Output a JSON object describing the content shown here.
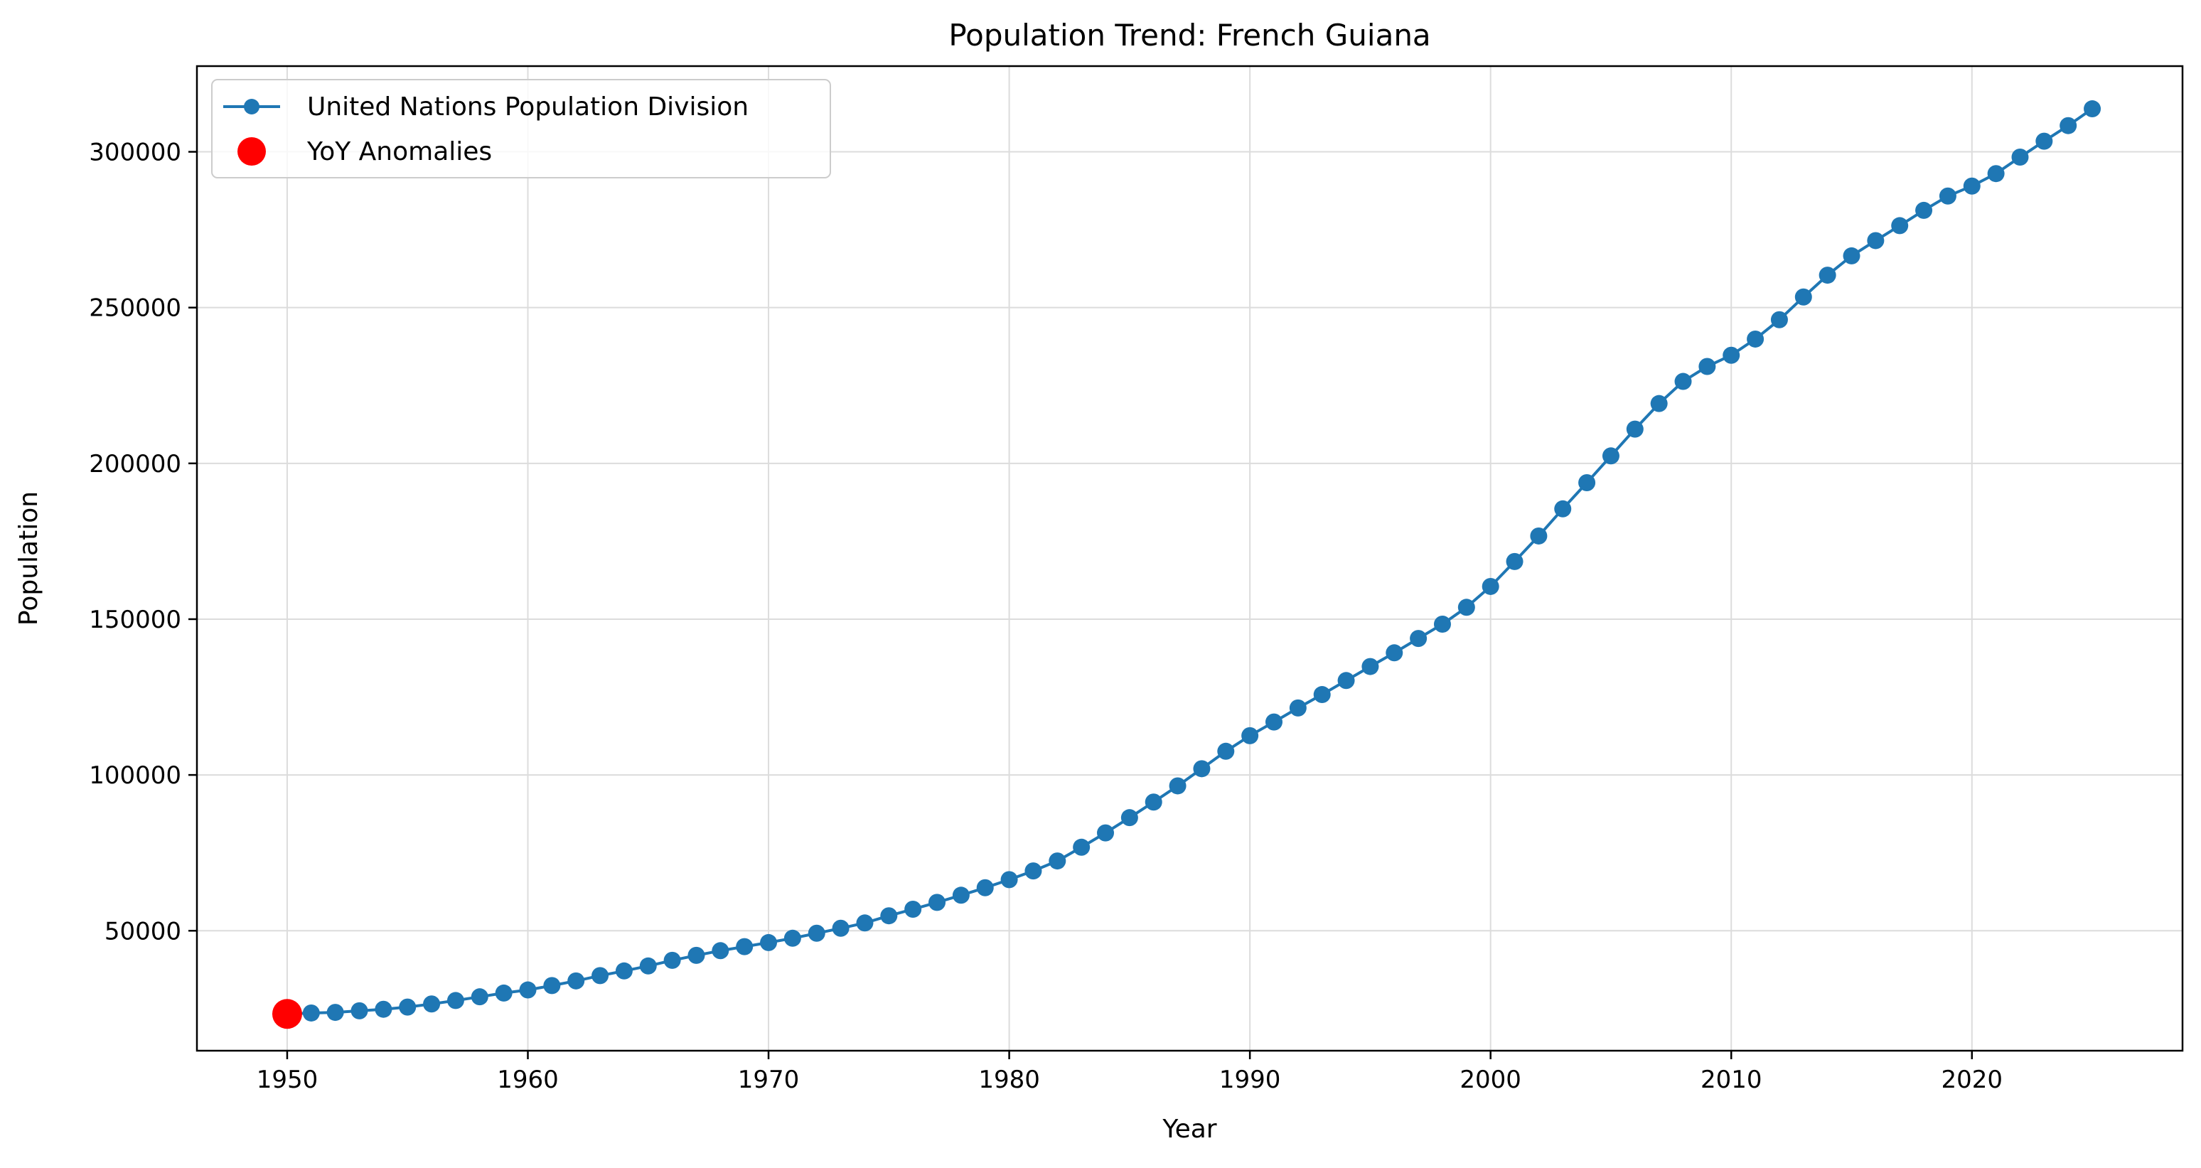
{
  "chart_data": {
    "type": "line",
    "title": "Population Trend: French Guiana",
    "xlabel": "Year",
    "ylabel": "Population",
    "xlim": [
      1946.25,
      2028.75
    ],
    "ylim": [
      11500,
      327500
    ],
    "xticks": [
      1950,
      1960,
      1970,
      1980,
      1990,
      2000,
      2010,
      2020
    ],
    "yticks": [
      50000,
      100000,
      150000,
      200000,
      250000,
      300000
    ],
    "grid": true,
    "legend_position": "upper-left",
    "series": [
      {
        "name": "United Nations Population Division",
        "color": "#1f77b4",
        "marker": "circle",
        "x": [
          1950,
          1951,
          1952,
          1953,
          1954,
          1955,
          1956,
          1957,
          1958,
          1959,
          1960,
          1961,
          1962,
          1963,
          1964,
          1965,
          1966,
          1967,
          1968,
          1969,
          1970,
          1971,
          1972,
          1973,
          1974,
          1975,
          1976,
          1977,
          1978,
          1979,
          1980,
          1981,
          1982,
          1983,
          1984,
          1985,
          1986,
          1987,
          1988,
          1989,
          1990,
          1991,
          1992,
          1993,
          1994,
          1995,
          1996,
          1997,
          1998,
          1999,
          2000,
          2001,
          2002,
          2003,
          2004,
          2005,
          2006,
          2007,
          2008,
          2009,
          2010,
          2011,
          2012,
          2013,
          2014,
          2015,
          2016,
          2017,
          2018,
          2019,
          2020,
          2021,
          2022,
          2023,
          2024,
          2025
        ],
        "y": [
          23300,
          23600,
          23800,
          24300,
          24800,
          25500,
          26500,
          27600,
          28800,
          30000,
          31000,
          32400,
          33900,
          35600,
          37100,
          38700,
          40500,
          42100,
          43600,
          44900,
          46200,
          47600,
          49200,
          50800,
          52500,
          54800,
          56900,
          59100,
          61400,
          63800,
          66400,
          69200,
          72400,
          76800,
          81400,
          86300,
          91300,
          96500,
          102000,
          107600,
          112600,
          117000,
          121500,
          125800,
          130300,
          134800,
          139200,
          143800,
          148400,
          153800,
          160500,
          168500,
          176700,
          185400,
          193800,
          202400,
          211000,
          219200,
          226300,
          231100,
          234700,
          239900,
          246100,
          253400,
          260400,
          266600,
          271500,
          276300,
          281200,
          285800,
          289000,
          293000,
          298300,
          303400,
          308400,
          313800
        ]
      }
    ],
    "anomalies": {
      "name": "YoY Anomalies",
      "color": "#ff0000",
      "x": [
        1950
      ],
      "y": [
        23300
      ]
    }
  }
}
